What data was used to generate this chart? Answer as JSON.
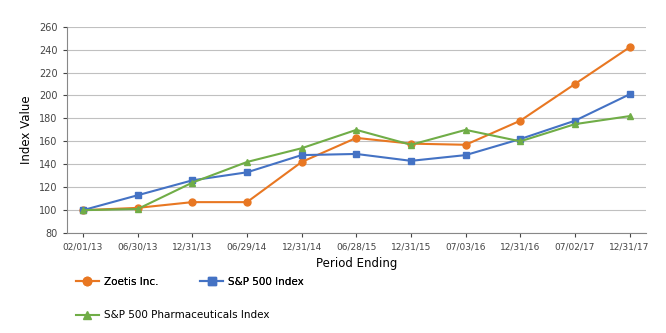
{
  "x_labels": [
    "02/01/13",
    "06/30/13",
    "12/31/13",
    "06/29/14",
    "12/31/14",
    "06/28/15",
    "12/31/15",
    "07/03/16",
    "12/31/16",
    "07/02/17",
    "12/31/17"
  ],
  "zoetis": [
    100,
    102,
    107,
    107,
    142,
    163,
    158,
    157,
    178,
    210,
    242
  ],
  "sp500": [
    100,
    113,
    126,
    133,
    148,
    149,
    143,
    148,
    162,
    178,
    201
  ],
  "pharma": [
    100,
    101,
    124,
    142,
    154,
    170,
    157,
    170,
    160,
    175,
    182
  ],
  "zoetis_color": "#E87722",
  "sp500_color": "#4472C4",
  "pharma_color": "#70AD47",
  "ylim": [
    80,
    260
  ],
  "yticks": [
    80,
    100,
    120,
    140,
    160,
    180,
    200,
    220,
    240,
    260
  ],
  "ylabel": "Index Value",
  "xlabel": "Period Ending",
  "legend_zoetis": "Zoetis Inc.",
  "legend_sp500": "S&P 500 Index",
  "legend_pharma": "S&P 500 Pharmaceuticals Index",
  "plot_bg_color": "#FFFFFF",
  "fig_bg_color": "#FFFFFF",
  "grid_color": "#C0C0C0",
  "line_width": 1.5,
  "marker_size": 5
}
